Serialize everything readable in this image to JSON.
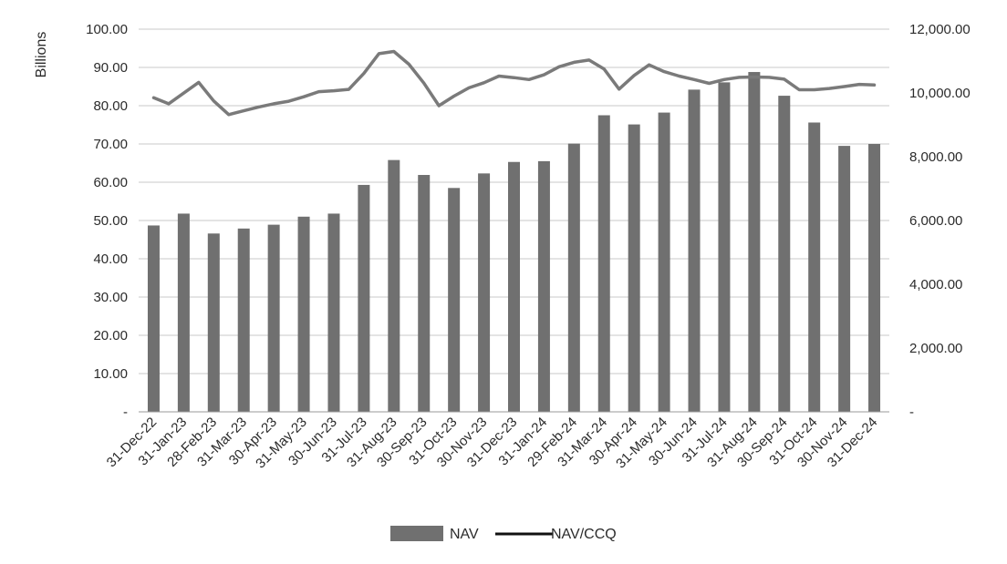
{
  "chart_data": {
    "type": "bar",
    "ylabel": "Billions",
    "y_left_ticks": [
      "100.00",
      "90.00",
      "80.00",
      "70.00",
      "60.00",
      "50.00",
      "40.00",
      "30.00",
      "20.00",
      "10.00",
      "-"
    ],
    "y_right_ticks": [
      "12,000.00",
      "10,000.00",
      "8,000.00",
      "6,000.00",
      "4,000.00",
      "2,000.00",
      "-"
    ],
    "ylim": [
      0,
      100
    ],
    "y2lim": [
      0,
      12000
    ],
    "grid": true,
    "legend_position": "bottom",
    "categories": [
      "31-Dec-22",
      "31-Jan-23",
      "28-Feb-23",
      "31-Mar-23",
      "30-Apr-23",
      "31-May-23",
      "30-Jun-23",
      "31-Jul-23",
      "31-Aug-23",
      "30-Sep-23",
      "31-Oct-23",
      "30-Nov-23",
      "31-Dec-23",
      "31-Jan-24",
      "29-Feb-24",
      "31-Mar-24",
      "30-Apr-24",
      "31-May-24",
      "30-Jun-24",
      "31-Jul-24",
      "31-Aug-24",
      "30-Sep-24",
      "31-Oct-24",
      "30-Nov-24",
      "31-Dec-24"
    ],
    "series": [
      {
        "name": "NAV",
        "type": "bar",
        "axis": "left",
        "color": "#707070",
        "values": [
          48.7,
          51.8,
          46.6,
          47.9,
          48.9,
          51.0,
          51.8,
          59.3,
          65.8,
          61.9,
          58.5,
          62.3,
          65.3,
          65.5,
          70.1,
          77.5,
          75.1,
          78.2,
          84.2,
          86.1,
          88.8,
          82.6,
          75.6,
          69.5,
          70.0
        ]
      },
      {
        "name": "NAV/CCQ",
        "type": "line",
        "axis": "right",
        "color": "#7a7a7a",
        "x": [
          0,
          0.5,
          1.5,
          2,
          2.5,
          3,
          3.5,
          4,
          4.5,
          5,
          5.5,
          6,
          6.5,
          7,
          7.5,
          8,
          8.5,
          9,
          9.5,
          10,
          10.5,
          11,
          11.5,
          12,
          12.5,
          13,
          13.5,
          14,
          14.5,
          15,
          15.5,
          16,
          16.5,
          17,
          17.5,
          18,
          18.5,
          19,
          19.5,
          20,
          20.5,
          21,
          21.5,
          22,
          22.5,
          23,
          23.5,
          24
        ],
        "values": [
          9850,
          9660,
          10330,
          9750,
          9320,
          9440,
          9560,
          9660,
          9740,
          9880,
          10040,
          10070,
          10110,
          10610,
          11230,
          11300,
          10900,
          10310,
          9600,
          9900,
          10160,
          10320,
          10530,
          10480,
          10420,
          10570,
          10820,
          10960,
          11030,
          10750,
          10120,
          10550,
          10880,
          10670,
          10530,
          10420,
          10300,
          10420,
          10490,
          10500,
          10490,
          10430,
          10100,
          10100,
          10140,
          10200,
          10270,
          10250
        ]
      }
    ]
  }
}
